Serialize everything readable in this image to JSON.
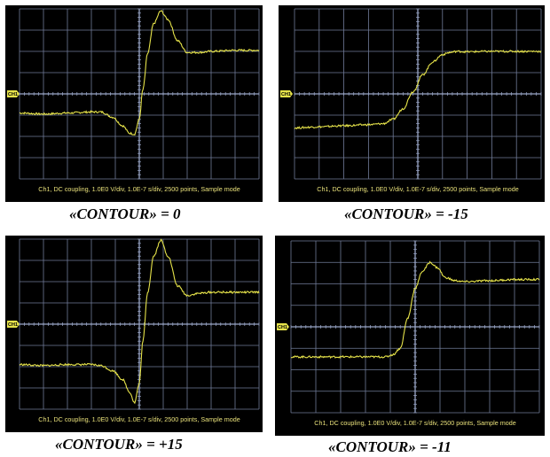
{
  "chart_data": [
    {
      "type": "line",
      "caption": "«CONTOUR» = 0",
      "channel_marker": "CH1",
      "info_text": "Ch1, DC coupling, 1.0E0 V/div, 1.0E-7 s/div, 2500 points, Sample mode",
      "grid": true,
      "divisions": [
        10,
        8
      ],
      "trace_color": "#e6e34a",
      "xlim": [
        0,
        10
      ],
      "ylim": [
        -4,
        4
      ],
      "series": [
        {
          "x": [
            0,
            1,
            2,
            3,
            3.4,
            3.9,
            4.3,
            4.6,
            4.8,
            5.0,
            5.15,
            5.35,
            5.6,
            5.9,
            6.2,
            6.6,
            7,
            7.5,
            8,
            9,
            10
          ],
          "y": [
            -0.9,
            -0.95,
            -0.9,
            -0.85,
            -0.85,
            -1.1,
            -1.5,
            -1.85,
            -1.9,
            -1.2,
            0.2,
            1.9,
            3.3,
            3.9,
            3.5,
            2.5,
            1.95,
            1.95,
            2.0,
            2.05,
            2.05
          ]
        }
      ]
    },
    {
      "type": "line",
      "caption": "«CONTOUR» = -15",
      "channel_marker": "CH1",
      "info_text": "Ch1, DC coupling, 1.0E0 V/div, 1.0E-7 s/div, 2500 points, Sample mode",
      "grid": true,
      "divisions": [
        10,
        8
      ],
      "trace_color": "#e6e34a",
      "xlim": [
        0,
        10
      ],
      "ylim": [
        -4,
        4
      ],
      "series": [
        {
          "x": [
            0,
            1,
            2,
            3,
            3.6,
            4.0,
            4.4,
            4.8,
            5.2,
            5.6,
            6.0,
            6.3,
            6.6,
            7,
            8,
            9,
            10
          ],
          "y": [
            -1.6,
            -1.55,
            -1.5,
            -1.45,
            -1.4,
            -1.2,
            -0.7,
            0.1,
            0.9,
            1.5,
            1.85,
            1.95,
            2.0,
            1.98,
            2.0,
            2.0,
            2.0
          ]
        }
      ]
    },
    {
      "type": "line",
      "caption": "«CONTOUR» = +15",
      "channel_marker": "CH1",
      "info_text": "Ch1, DC coupling, 1.0E0 V/div, 1.0E-7 s/div, 2500 points, Sample mode",
      "grid": true,
      "divisions": [
        10,
        8
      ],
      "trace_color": "#e6e34a",
      "xlim": [
        0,
        10
      ],
      "ylim": [
        -4,
        4
      ],
      "series": [
        {
          "x": [
            0,
            1,
            2,
            3,
            3.4,
            3.9,
            4.3,
            4.6,
            4.8,
            5.0,
            5.15,
            5.35,
            5.6,
            5.9,
            6.2,
            6.6,
            7,
            7.5,
            8,
            9,
            10
          ],
          "y": [
            -1.9,
            -1.95,
            -1.9,
            -1.9,
            -1.95,
            -2.2,
            -2.6,
            -3.2,
            -3.7,
            -2.8,
            -0.8,
            1.5,
            3.2,
            3.95,
            3.2,
            1.8,
            1.35,
            1.45,
            1.5,
            1.5,
            1.5
          ]
        }
      ]
    },
    {
      "type": "line",
      "caption": "«CONTOUR» = -11",
      "channel_marker": "CH1",
      "info_text": "Ch1, DC coupling, 1.0E0 V/div, 1.0E-7 s/div, 2500 points, Sample mode",
      "grid": true,
      "divisions": [
        10,
        8
      ],
      "trace_color": "#e6e34a",
      "xlim": [
        0,
        10
      ],
      "ylim": [
        -4,
        4
      ],
      "series": [
        {
          "x": [
            0,
            1,
            2,
            3,
            3.8,
            4.1,
            4.4,
            4.7,
            5.0,
            5.3,
            5.6,
            5.9,
            6.2,
            6.6,
            7,
            8,
            9,
            10
          ],
          "y": [
            -1.4,
            -1.4,
            -1.4,
            -1.4,
            -1.4,
            -1.3,
            -1.0,
            0.4,
            1.8,
            2.6,
            3.0,
            2.75,
            2.3,
            2.15,
            2.1,
            2.15,
            2.2,
            2.2
          ]
        }
      ]
    }
  ]
}
